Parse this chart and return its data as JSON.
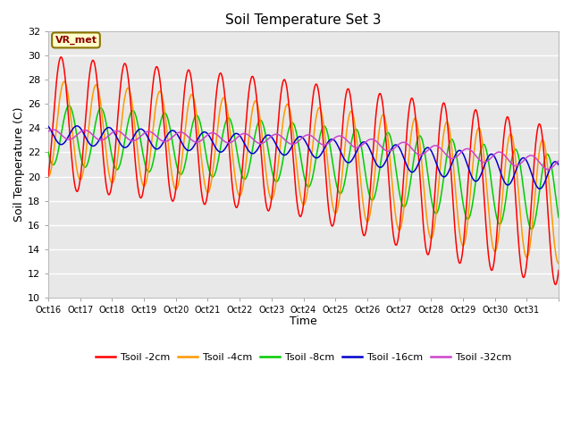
{
  "title": "Soil Temperature Set 3",
  "xlabel": "Time",
  "ylabel": "Soil Temperature (C)",
  "ylim": [
    10,
    32
  ],
  "xlim": [
    0,
    16
  ],
  "plot_bg_color": "#e8e8e8",
  "annotation_text": "VR_met",
  "annotation_bg": "#ffffcc",
  "annotation_border": "#8B7300",
  "series_colors": [
    "#ff0000",
    "#ff9900",
    "#00cc00",
    "#0000cc",
    "#cc44cc"
  ],
  "series_labels": [
    "Tsoil -2cm",
    "Tsoil -4cm",
    "Tsoil -8cm",
    "Tsoil -16cm",
    "Tsoil -32cm"
  ],
  "xtick_labels": [
    "Oct 16",
    "Oct 17",
    "Oct 18",
    "Oct 19",
    "Oct 20",
    "Oct 21",
    "Oct 22",
    "Oct 23",
    "Oct 24",
    "Oct 25",
    "Oct 26",
    "Oct 27",
    "Oct 28",
    "Oct 29",
    "Oct 30",
    "Oct 31"
  ],
  "ytick_values": [
    10,
    12,
    14,
    16,
    18,
    20,
    22,
    24,
    26,
    28,
    30,
    32
  ],
  "n_days": 16,
  "pts_per_day": 96
}
